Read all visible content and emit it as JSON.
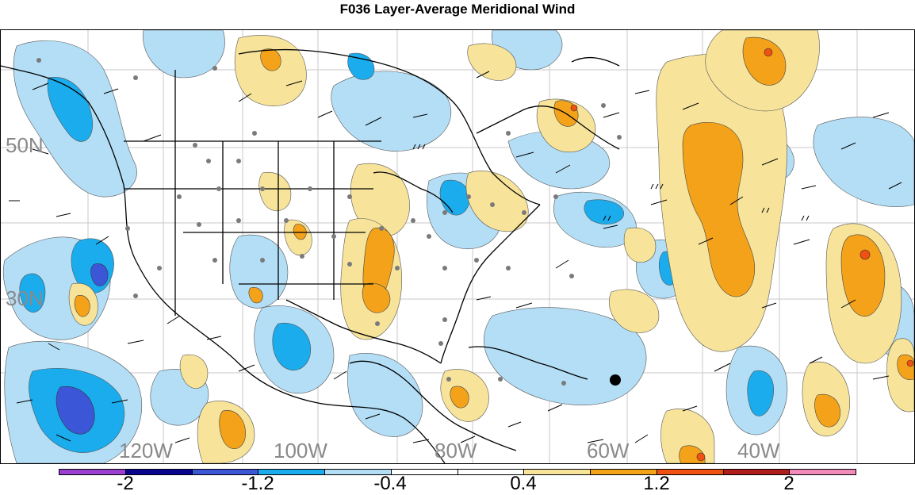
{
  "title": "F036 Layer-Average Meridional Wind",
  "map": {
    "lat_labels": [
      "50N",
      "30N"
    ],
    "lon_labels": [
      "120W",
      "100W",
      "80W",
      "60W",
      "40W"
    ],
    "legend_markers": []
  },
  "colorbar": {
    "labels": [
      "-2",
      "-1.2",
      "-0.4",
      "0.4",
      "1.2",
      "2"
    ],
    "colors": [
      "#9a3fd0",
      "#08048f",
      "#3c56d8",
      "#1aacec",
      "#b3def6",
      "#ffffff",
      "#f7e49a",
      "#f3a21a",
      "#f05010",
      "#b01d1d",
      "#f08ab8"
    ]
  },
  "colors": {
    "neg_light": "#b3def6",
    "neg_medium": "#1aacec",
    "neg_strong": "#3c56d8",
    "pos_light": "#f7e49a",
    "pos_medium": "#f3a21a",
    "pos_strong": "#f05010"
  }
}
